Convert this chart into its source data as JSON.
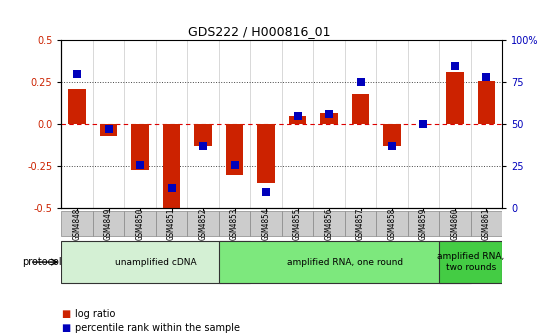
{
  "title": "GDS222 / H000816_01",
  "samples": [
    "GSM4848",
    "GSM4849",
    "GSM4850",
    "GSM4851",
    "GSM4852",
    "GSM4853",
    "GSM4854",
    "GSM4855",
    "GSM4856",
    "GSM4857",
    "GSM4858",
    "GSM4859",
    "GSM4860",
    "GSM4861"
  ],
  "log_ratio": [
    0.21,
    -0.07,
    -0.27,
    -0.5,
    -0.13,
    -0.3,
    -0.35,
    0.05,
    0.07,
    0.18,
    -0.13,
    0.0,
    0.31,
    0.26
  ],
  "percentile_rank": [
    80,
    47,
    26,
    12,
    37,
    26,
    10,
    55,
    56,
    75,
    37,
    50,
    85,
    78
  ],
  "protocols": [
    {
      "label": "unamplified cDNA",
      "start": 0,
      "end": 5,
      "color": "#d4f0d4"
    },
    {
      "label": "amplified RNA, one round",
      "start": 5,
      "end": 12,
      "color": "#7de87d"
    },
    {
      "label": "amplified RNA,\ntwo rounds",
      "start": 12,
      "end": 13,
      "color": "#44cc44"
    }
  ],
  "bar_color": "#cc2200",
  "dot_color": "#0000bb",
  "ylim_left": [
    -0.5,
    0.5
  ],
  "ylim_right": [
    0,
    100
  ],
  "yticks_left": [
    -0.5,
    -0.25,
    0.0,
    0.25,
    0.5
  ],
  "yticks_right": [
    0,
    25,
    50,
    75,
    100
  ],
  "ytick_labels_right": [
    "0",
    "25",
    "50",
    "75",
    "100%"
  ],
  "hline_color": "#dd0000",
  "dotted_line_color": "#444444",
  "bg_color": "#ffffff",
  "bar_width": 0.55,
  "dot_size": 28
}
